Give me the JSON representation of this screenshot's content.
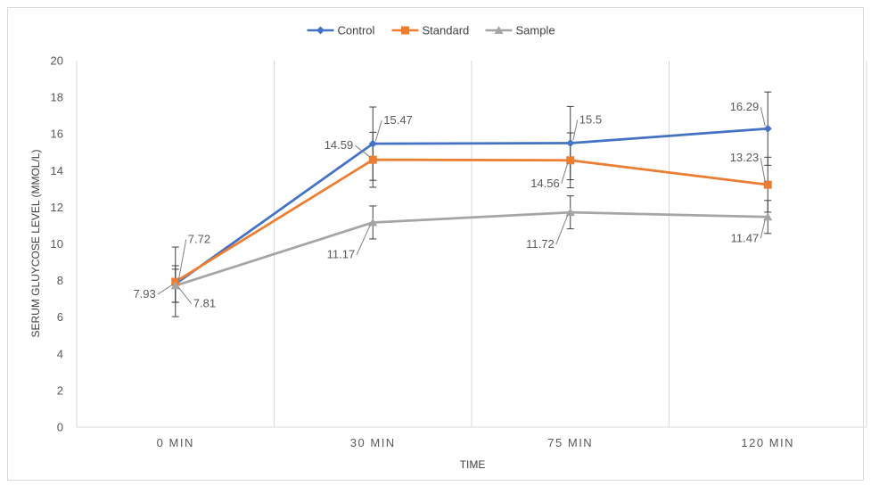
{
  "chart_data": {
    "type": "line",
    "categories": [
      "0 MIN",
      "30 MIN",
      "75 MIN",
      "120 MIN"
    ],
    "xlabel": "TIME",
    "ylabel": "SERUM GLUYCOSE LEVEL (MMOL/L)",
    "ylim": [
      0,
      20
    ],
    "ytick_step": 2,
    "grid": "vertical category separators",
    "legend": "top-center",
    "series": [
      {
        "name": "Control",
        "color": "#4472C4",
        "marker": "diamond",
        "values": [
          7.81,
          15.47,
          15.5,
          16.29
        ],
        "error": [
          1.0,
          2.0,
          2.0,
          2.0
        ],
        "labels": [
          "7.81",
          "15.47",
          "15.5",
          "16.29"
        ]
      },
      {
        "name": "Standard",
        "color": "#ED7D31",
        "marker": "square",
        "values": [
          7.93,
          14.59,
          14.56,
          13.23
        ],
        "error": [
          1.9,
          1.5,
          1.5,
          1.5
        ],
        "labels": [
          "7.93",
          "14.59",
          "14.56",
          "13.23"
        ]
      },
      {
        "name": "Sample",
        "color": "#A5A5A5",
        "marker": "triangle",
        "values": [
          7.72,
          11.17,
          11.72,
          11.47
        ],
        "error": [
          0.9,
          0.9,
          0.9,
          0.9
        ],
        "labels": [
          "7.72",
          "11.17",
          "11.72",
          "11.47"
        ]
      }
    ]
  }
}
